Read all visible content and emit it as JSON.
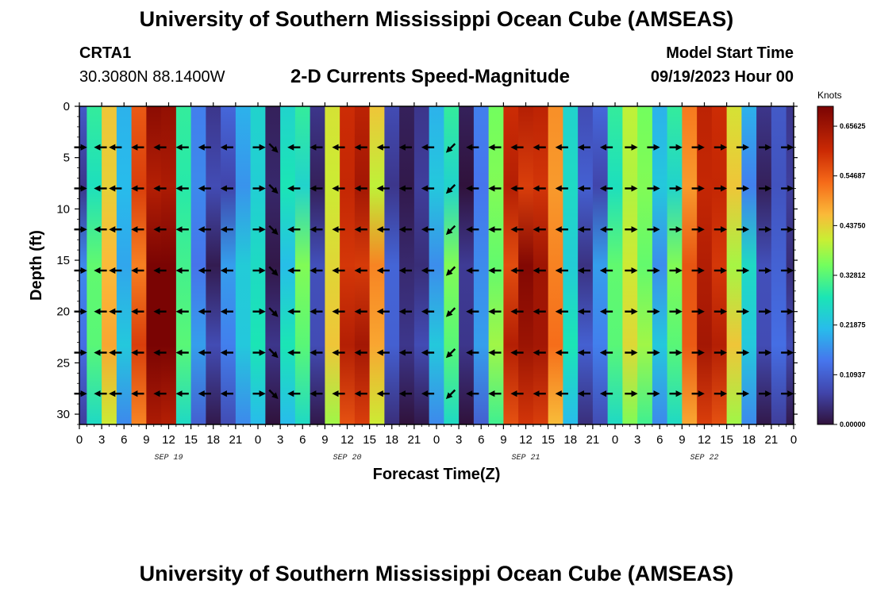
{
  "header": {
    "title": "University of Southern Mississippi Ocean Cube (AMSEAS)",
    "station_id": "CRTA1",
    "station_coords": "30.3080N  88.1400W",
    "product_title": "2-D Currents Speed-Magnitude",
    "model_start_label": "Model Start Time",
    "model_start_value": "09/19/2023 Hour 00"
  },
  "footer": {
    "title": "University of Southern Mississippi Ocean Cube (AMSEAS)"
  },
  "chart_data": {
    "type": "heatmap",
    "title": "2-D Currents Speed-Magnitude",
    "xlabel": "Forecast Time(Z)",
    "ylabel": "Depth (ft)",
    "xlim_hours": [
      0,
      96
    ],
    "ylim": [
      0,
      31
    ],
    "y_inverted": true,
    "x_tick_hours": [
      0,
      3,
      6,
      9,
      12,
      15,
      18,
      21,
      24,
      27,
      30,
      33,
      36,
      39,
      42,
      45,
      48,
      51,
      54,
      57,
      60,
      63,
      66,
      69,
      72,
      75,
      78,
      81,
      84,
      87,
      90,
      93,
      96
    ],
    "x_tick_labels": [
      "0",
      "3",
      "6",
      "9",
      "12",
      "15",
      "18",
      "21",
      "0",
      "3",
      "6",
      "9",
      "12",
      "15",
      "18",
      "21",
      "0",
      "3",
      "6",
      "9",
      "12",
      "15",
      "18",
      "21",
      "0",
      "3",
      "6",
      "9",
      "12",
      "15",
      "18",
      "21",
      "0"
    ],
    "date_labels": [
      {
        "hour": 12,
        "text": "SEP 19"
      },
      {
        "hour": 36,
        "text": "SEP 20"
      },
      {
        "hour": 60,
        "text": "SEP 21"
      },
      {
        "hour": 84,
        "text": "SEP 22"
      }
    ],
    "y_ticks": [
      0,
      5,
      10,
      15,
      20,
      25,
      30
    ],
    "colorbar": {
      "unit": "Knots",
      "min": 0.0,
      "max": 0.7,
      "tick_values": [
        0.0,
        0.109375,
        0.21875,
        0.328125,
        0.4375,
        0.546875,
        0.65625
      ],
      "tick_labels": [
        "0.00000",
        "0.10937",
        "0.21875",
        "0.32812",
        "0.43750",
        "0.54687",
        "0.65625"
      ]
    },
    "time_hours": [
      0,
      2,
      4,
      6,
      8,
      10,
      12,
      14,
      16,
      18,
      20,
      22,
      24,
      26,
      28,
      30,
      32,
      34,
      36,
      38,
      40,
      42,
      44,
      46,
      48,
      50,
      52,
      54,
      56,
      58,
      60,
      62,
      64,
      66,
      68,
      70,
      72,
      74,
      76,
      78,
      80,
      82,
      84,
      86,
      88,
      90,
      92,
      94,
      96
    ],
    "surface_speed_knots": [
      0.1,
      0.3,
      0.45,
      0.2,
      0.55,
      0.68,
      0.67,
      0.3,
      0.15,
      0.05,
      0.12,
      0.2,
      0.25,
      0.02,
      0.25,
      0.3,
      0.05,
      0.42,
      0.6,
      0.62,
      0.45,
      0.08,
      0.02,
      0.05,
      0.2,
      0.3,
      0.02,
      0.15,
      0.35,
      0.6,
      0.63,
      0.62,
      0.5,
      0.25,
      0.08,
      0.12,
      0.3,
      0.4,
      0.35,
      0.2,
      0.3,
      0.52,
      0.62,
      0.6,
      0.42,
      0.2,
      0.05,
      0.1,
      0.05
    ],
    "vector_depths": [
      4,
      8,
      12,
      16,
      20,
      24,
      28
    ],
    "vector_time_hours": [
      0,
      3,
      5,
      8,
      11,
      14,
      17,
      20,
      24,
      26,
      29,
      32,
      35,
      38,
      41,
      44,
      47,
      50,
      53,
      56,
      59,
      62,
      65,
      68,
      71,
      74,
      77,
      80,
      83,
      86,
      89,
      92,
      95
    ],
    "vector_direction": [
      "E",
      "W",
      "W",
      "W",
      "W",
      "W",
      "W",
      "W",
      "E",
      "SE",
      "W",
      "W",
      "W",
      "W",
      "W",
      "W",
      "W",
      "SW",
      "W",
      "W",
      "W",
      "W",
      "W",
      "W",
      "W",
      "E",
      "E",
      "E",
      "E",
      "E",
      "E",
      "E",
      "E"
    ]
  }
}
